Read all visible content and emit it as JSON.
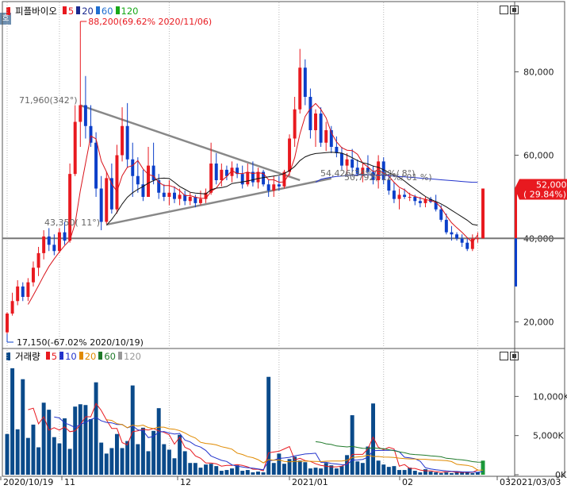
{
  "window": {
    "corner_tab": "호"
  },
  "price_legend": {
    "name": "피플바이오",
    "items": [
      {
        "label": "5",
        "color": "#e8191f"
      },
      {
        "label": "20",
        "color": "#1b2a8f"
      },
      {
        "label": "60",
        "color": "#1f6fd1"
      },
      {
        "label": "120",
        "color": "#18a818"
      }
    ]
  },
  "volume_legend": {
    "name": "거래량",
    "items": [
      {
        "label": "5",
        "color": "#e8191f"
      },
      {
        "label": "10",
        "color": "#2233cc"
      },
      {
        "label": "20",
        "color": "#e08a00"
      },
      {
        "label": "60",
        "color": "#1f7a2a"
      },
      {
        "label": "120",
        "color": "#999999"
      }
    ]
  },
  "price_axis": {
    "ticks": [
      "80,000",
      "60,000",
      "40,000",
      "20,000"
    ]
  },
  "volume_axis": {
    "ticks": [
      "10,000K",
      "5,000K",
      "0K"
    ]
  },
  "date_axis": {
    "labels": [
      "2020/10/19",
      "11",
      "12",
      "2021/01",
      "02",
      "03",
      "2021/03/03"
    ]
  },
  "annotations": {
    "high": "88,200(69.62% 2020/11/06)",
    "low": "17,150(-67.02% 2020/10/19)",
    "trend1": "71,960(342°)",
    "trend2": "43,350( 11°)",
    "apex": "54,426(34%/34%/  8°)",
    "apex2": "50,792(-12%/ 01 %)"
  },
  "current_price": {
    "value": "52,000",
    "change": "( 29.84%)"
  },
  "colors": {
    "up": "#e8191f",
    "down": "#0b3fc9",
    "volume": "#0a4a8a",
    "volume_last": "#1a9a3a"
  },
  "chart_data": [
    {
      "type": "candlestick",
      "title": "피플바이오",
      "ylim": [
        14000,
        94000
      ],
      "x": [
        "2020/10/19",
        "2020/10/20",
        "2020/10/21",
        "2020/10/22",
        "2020/10/23",
        "2020/10/26",
        "2020/10/27",
        "2020/10/28",
        "2020/10/29",
        "2020/10/30",
        "2020/11/02",
        "2020/11/03",
        "2020/11/04",
        "2020/11/05",
        "2020/11/06",
        "2020/11/09",
        "2020/11/10",
        "2020/11/11",
        "2020/11/12",
        "2020/11/13",
        "2020/11/16",
        "2020/11/17",
        "2020/11/18",
        "2020/11/19",
        "2020/11/20",
        "2020/11/23",
        "2020/11/24",
        "2020/11/25",
        "2020/11/26",
        "2020/11/27",
        "2020/11/30",
        "2020/12/01",
        "2020/12/02",
        "2020/12/03",
        "2020/12/04",
        "2020/12/07",
        "2020/12/08",
        "2020/12/09",
        "2020/12/10",
        "2020/12/11",
        "2020/12/14",
        "2020/12/15",
        "2020/12/16",
        "2020/12/17",
        "2020/12/18",
        "2020/12/21",
        "2020/12/22",
        "2020/12/23",
        "2020/12/24",
        "2020/12/28",
        "2020/12/29",
        "2020/12/30",
        "2021/01/04",
        "2021/01/05",
        "2021/01/06",
        "2021/01/07",
        "2021/01/08",
        "2021/01/11",
        "2021/01/12",
        "2021/01/13",
        "2021/01/14",
        "2021/01/15",
        "2021/01/18",
        "2021/01/19",
        "2021/01/20",
        "2021/01/21",
        "2021/01/22",
        "2021/01/25",
        "2021/01/26",
        "2021/01/27",
        "2021/01/28",
        "2021/01/29",
        "2021/02/01",
        "2021/02/02",
        "2021/02/03",
        "2021/02/04",
        "2021/02/05",
        "2021/02/08",
        "2021/02/09",
        "2021/02/10",
        "2021/02/15",
        "2021/02/16",
        "2021/02/17",
        "2021/02/18",
        "2021/02/19",
        "2021/02/22",
        "2021/02/23",
        "2021/02/24",
        "2021/02/25",
        "2021/02/26",
        "2021/03/02",
        "2021/03/03"
      ],
      "ohlc": [
        [
          17500,
          22300,
          17150,
          22000
        ],
        [
          22000,
          27000,
          21500,
          25000
        ],
        [
          25000,
          30000,
          24000,
          28500
        ],
        [
          28500,
          29500,
          25000,
          26000
        ],
        [
          26000,
          30500,
          25000,
          29500
        ],
        [
          29500,
          34500,
          28500,
          33000
        ],
        [
          33000,
          38000,
          31000,
          36500
        ],
        [
          36500,
          42000,
          35000,
          40500
        ],
        [
          40500,
          42500,
          37000,
          38500
        ],
        [
          38500,
          41000,
          36000,
          37000
        ],
        [
          37000,
          42500,
          36500,
          41500
        ],
        [
          41500,
          44000,
          38500,
          39500
        ],
        [
          39500,
          58000,
          39000,
          55500
        ],
        [
          55500,
          72000,
          55000,
          68000
        ],
        [
          68000,
          88200,
          62000,
          72000
        ],
        [
          72000,
          79000,
          64000,
          67000
        ],
        [
          67000,
          72000,
          62000,
          63000
        ],
        [
          63000,
          65500,
          50000,
          52000
        ],
        [
          52000,
          55000,
          42000,
          44000
        ],
        [
          44000,
          56000,
          43500,
          54500
        ],
        [
          54500,
          58000,
          46000,
          47000
        ],
        [
          47000,
          62500,
          46000,
          60000
        ],
        [
          60000,
          71500,
          58500,
          67000
        ],
        [
          67000,
          72500,
          57000,
          59000
        ],
        [
          59000,
          63000,
          50000,
          55000
        ],
        [
          55000,
          59500,
          51000,
          53000
        ],
        [
          53000,
          56500,
          49000,
          50000
        ],
        [
          50000,
          62000,
          50000,
          57500
        ],
        [
          57500,
          63000,
          53000,
          54000
        ],
        [
          54000,
          55500,
          49500,
          51000
        ],
        [
          51000,
          53000,
          49000,
          50000
        ],
        [
          50000,
          54000,
          48000,
          51000
        ],
        [
          51000,
          52500,
          48500,
          49500
        ],
        [
          49500,
          52000,
          48000,
          50500
        ],
        [
          50500,
          51500,
          48000,
          49000
        ],
        [
          49000,
          51000,
          48000,
          50000
        ],
        [
          50000,
          50500,
          47500,
          48500
        ],
        [
          48500,
          51500,
          48000,
          49500
        ],
        [
          49500,
          52000,
          48500,
          51000
        ],
        [
          51000,
          63000,
          50500,
          58000
        ],
        [
          58000,
          60500,
          53000,
          54000
        ],
        [
          54000,
          58000,
          52500,
          56500
        ],
        [
          56500,
          57500,
          54000,
          55000
        ],
        [
          55000,
          58500,
          53500,
          57000
        ],
        [
          57000,
          58000,
          54500,
          55500
        ],
        [
          55500,
          57500,
          52000,
          53000
        ],
        [
          53000,
          58000,
          52500,
          56000
        ],
        [
          56000,
          58500,
          52500,
          53500
        ],
        [
          53500,
          57000,
          52000,
          56000
        ],
        [
          56000,
          56500,
          52500,
          53000
        ],
        [
          53000,
          54000,
          50000,
          51500
        ],
        [
          51500,
          55000,
          50000,
          53000
        ],
        [
          53000,
          55000,
          51500,
          52500
        ],
        [
          52500,
          56500,
          52000,
          56000
        ],
        [
          56000,
          65000,
          55000,
          64000
        ],
        [
          64000,
          74000,
          62000,
          71000
        ],
        [
          71000,
          85500,
          70000,
          81000
        ],
        [
          81000,
          83000,
          72000,
          74000
        ],
        [
          74000,
          76000,
          64000,
          66000
        ],
        [
          66000,
          71000,
          62000,
          70000
        ],
        [
          70000,
          71500,
          62000,
          63000
        ],
        [
          63000,
          68000,
          61000,
          66000
        ],
        [
          66000,
          67000,
          60500,
          62000
        ],
        [
          62000,
          64500,
          59500,
          60500
        ],
        [
          60500,
          62000,
          56500,
          57500
        ],
        [
          57500,
          60500,
          55500,
          59000
        ],
        [
          59000,
          61500,
          56000,
          57000
        ],
        [
          57000,
          59000,
          55000,
          55500
        ],
        [
          55500,
          58000,
          53500,
          57000
        ],
        [
          57000,
          60000,
          55500,
          56000
        ],
        [
          56000,
          57500,
          53000,
          54000
        ],
        [
          54000,
          60000,
          52000,
          58500
        ],
        [
          58500,
          59500,
          53000,
          54000
        ],
        [
          54000,
          55500,
          50500,
          51500
        ],
        [
          51500,
          53500,
          48500,
          49500
        ],
        [
          49500,
          52000,
          47000,
          50500
        ],
        [
          50500,
          52000,
          49500,
          50000
        ],
        [
          50000,
          51000,
          49000,
          50000
        ],
        [
          50000,
          50500,
          48000,
          49000
        ],
        [
          49000,
          50000,
          47500,
          48500
        ],
        [
          48500,
          50000,
          47500,
          49500
        ],
        [
          49500,
          50000,
          48500,
          48800
        ],
        [
          48800,
          50500,
          46500,
          47000
        ],
        [
          47000,
          48000,
          44000,
          44500
        ],
        [
          44500,
          46000,
          41000,
          41500
        ],
        [
          41500,
          43000,
          39500,
          41000
        ],
        [
          41000,
          41500,
          39500,
          40000
        ],
        [
          40000,
          41000,
          38000,
          39000
        ],
        [
          39000,
          40000,
          37000,
          37500
        ],
        [
          37500,
          41000,
          37000,
          40000
        ],
        [
          40000,
          41500,
          39000,
          40050
        ],
        [
          40050,
          52000,
          40000,
          52000
        ]
      ],
      "ma5": [
        null,
        null,
        null,
        null,
        24200,
        26400,
        28700,
        31100,
        33300,
        35100,
        36800,
        38300,
        39600,
        43600,
        51500,
        58100,
        64600,
        63900,
        58600,
        56000,
        53100,
        51300,
        55100,
        57100,
        57500,
        58700,
        56700,
        55400,
        55000,
        53500,
        52700,
        52700,
        52300,
        51500,
        50300,
        50300,
        49900,
        49700,
        49600,
        51300,
        52100,
        53800,
        54900,
        56300,
        55600,
        55600,
        55900,
        55600,
        55800,
        55600,
        54100,
        54100,
        53500,
        53600,
        55700,
        59400,
        65100,
        69300,
        71200,
        72400,
        71000,
        69000,
        65400,
        63200,
        61800,
        61200,
        61100,
        60200,
        58100,
        57200,
        56100,
        56300,
        55700,
        55000,
        53500,
        52300,
        51700,
        50600,
        50100,
        49700,
        49400,
        49100,
        48700,
        47400,
        45500,
        43800,
        42600,
        41500,
        40200,
        39100,
        40900
      ],
      "ma20": [
        null,
        null,
        null,
        null,
        null,
        null,
        null,
        null,
        null,
        null,
        null,
        null,
        null,
        null,
        null,
        null,
        null,
        null,
        null,
        43200,
        44600,
        46300,
        48300,
        49900,
        51000,
        51800,
        52500,
        53300,
        53900,
        54400,
        54500,
        54400,
        53500,
        52500,
        51800,
        51100,
        50900,
        50800,
        50700,
        51700,
        52100,
        52200,
        52500,
        53200,
        53400,
        53600,
        53800,
        54100,
        54400,
        54600,
        54800,
        55000,
        55200,
        55600,
        56300,
        57300,
        58700,
        59600,
        60100,
        60400,
        60500,
        60600,
        60700,
        60600,
        60500,
        60000,
        59400,
        58700,
        58200,
        57900,
        57400,
        57100,
        56500,
        55800,
        55200,
        54700,
        53800,
        52800,
        51900,
        51000,
        50100,
        49400,
        48900,
        48300,
        47600,
        46800,
        46000,
        45200,
        44400,
        43400,
        43200
      ],
      "ma60": [
        null,
        null,
        null,
        null,
        null,
        null,
        null,
        null,
        null,
        null,
        null,
        null,
        null,
        null,
        null,
        null,
        null,
        null,
        null,
        null,
        null,
        null,
        null,
        null,
        null,
        null,
        null,
        null,
        null,
        null,
        null,
        null,
        null,
        null,
        null,
        null,
        null,
        null,
        null,
        null,
        null,
        null,
        null,
        null,
        null,
        null,
        null,
        null,
        null,
        null,
        null,
        null,
        null,
        null,
        null,
        null,
        null,
        null,
        null,
        53500,
        54200,
        54500,
        54700,
        54900,
        55000,
        55100,
        55200,
        55300,
        55300,
        55300,
        55300,
        55200,
        55200,
        55100,
        55000,
        54900,
        54800,
        54700,
        54600,
        54500,
        54400,
        54300,
        54200,
        54100,
        54000,
        53900,
        53800,
        53700,
        53600,
        53500,
        53500
      ]
    },
    {
      "type": "bar",
      "title": "거래량",
      "unit": "K",
      "ylim": [
        0,
        14500
      ],
      "values": [
        5200,
        13600,
        5800,
        12200,
        4700,
        6400,
        3500,
        9200,
        8300,
        4800,
        4000,
        7200,
        3300,
        8700,
        9000,
        8900,
        7100,
        11800,
        4100,
        2700,
        3400,
        5200,
        3400,
        4300,
        11400,
        3900,
        6000,
        3000,
        5600,
        8500,
        3900,
        3200,
        2100,
        5100,
        3000,
        1500,
        1500,
        900,
        1300,
        1400,
        1100,
        500,
        600,
        800,
        1200,
        500,
        600,
        300,
        400,
        300,
        12500,
        1500,
        2700,
        1400,
        2000,
        2300,
        1800,
        1600,
        800,
        900,
        800,
        1500,
        1200,
        800,
        1100,
        2500,
        7600,
        1700,
        1500,
        3600,
        9100,
        1800,
        1300,
        1000,
        1100,
        600,
        600,
        900,
        500,
        300,
        700,
        400,
        300,
        200,
        300,
        200,
        400,
        300,
        400,
        200,
        300,
        1800
      ],
      "ma5": [
        null,
        null,
        null,
        null,
        8300,
        8500,
        6500,
        7400,
        5700,
        6000,
        5700,
        6100,
        5500,
        5600,
        6400,
        7400,
        7400,
        9100,
        8200,
        7000,
        5900,
        5900,
        4100,
        3800,
        5500,
        5600,
        5800,
        5700,
        5900,
        5600,
        5400,
        5100,
        3900,
        4800,
        3500,
        3200,
        2400,
        2100,
        1500,
        1500,
        1400,
        1100,
        1200,
        1200,
        1300,
        1200,
        1000,
        700,
        700,
        500,
        2800,
        2900,
        3000,
        3300,
        3600,
        1900,
        2100,
        1800,
        1700,
        1400,
        1200,
        1100,
        1000,
        1000,
        1100,
        1400,
        2600,
        2600,
        2600,
        3300,
        4800,
        3500,
        3200,
        3500,
        3300,
        1100,
        1300,
        800,
        800,
        600,
        500,
        500,
        400,
        300,
        400,
        400,
        300,
        300,
        300,
        300,
        600
      ]
    }
  ]
}
